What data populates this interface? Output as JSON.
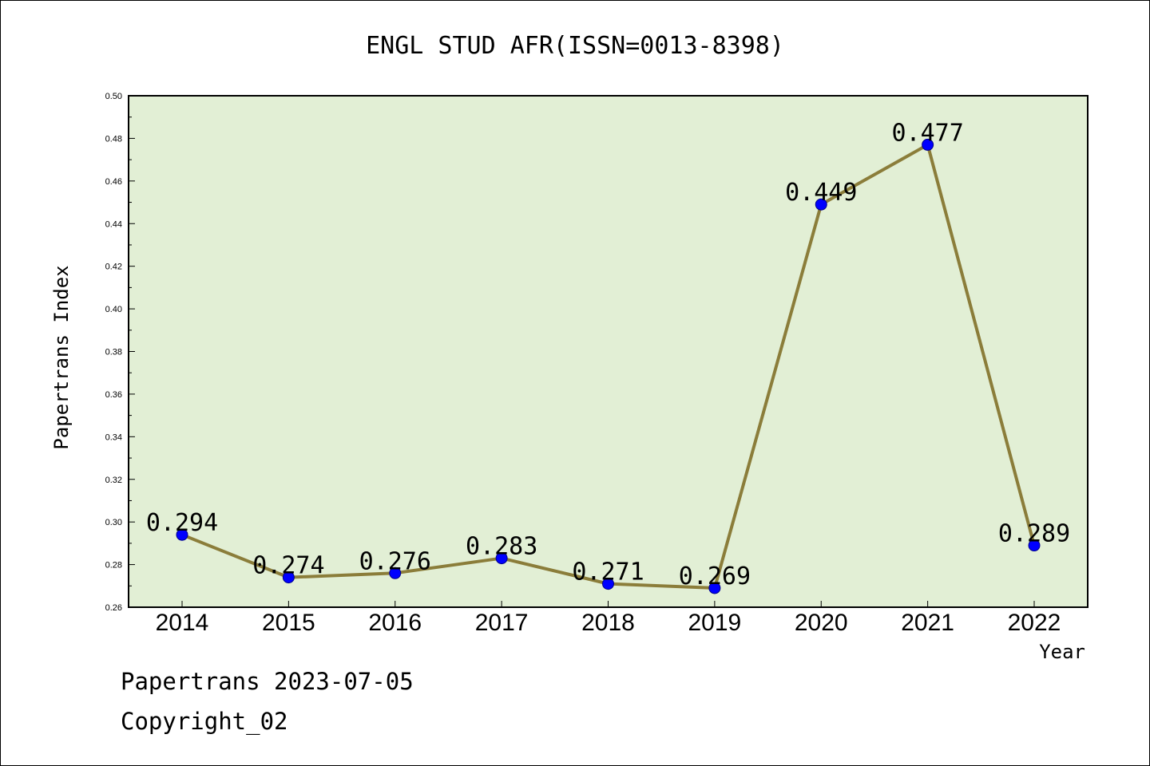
{
  "chart_data": {
    "type": "line",
    "title": "ENGL STUD AFR(ISSN=0013-8398)",
    "xlabel": "Year",
    "ylabel": "Papertrans Index",
    "categories": [
      "2014",
      "2015",
      "2016",
      "2017",
      "2018",
      "2019",
      "2020",
      "2021",
      "2022"
    ],
    "series": [
      {
        "values": [
          0.294,
          0.274,
          0.276,
          0.283,
          0.271,
          0.269,
          0.449,
          0.477,
          0.289
        ],
        "labels": [
          "0.294",
          "0.274",
          "0.276",
          "0.283",
          "0.271",
          "0.269",
          "0.449",
          "0.477",
          "0.289"
        ],
        "line_color": "#8b7d3a",
        "marker_color": "#0000ff"
      }
    ],
    "ylim": [
      0.26,
      0.5
    ],
    "yticks": [
      "0.26",
      "0.28",
      "0.30",
      "0.32",
      "0.34",
      "0.36",
      "0.38",
      "0.40",
      "0.42",
      "0.44",
      "0.46",
      "0.48",
      "0.50"
    ],
    "plot_background": "#e2efd5",
    "grid": false,
    "legend": "none"
  },
  "footer": {
    "line1": "Papertrans 2023-07-05",
    "line2": "Copyright_02"
  }
}
